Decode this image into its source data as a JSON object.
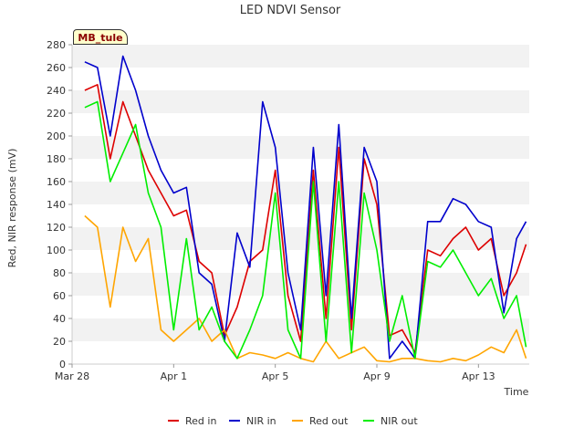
{
  "badge": "MB_tule",
  "chart_data": {
    "type": "line",
    "title": "LED NDVI Sensor",
    "xlabel": "Time",
    "ylabel": "Red, NIR response (mV)",
    "ylim": [
      0,
      280
    ],
    "yticks": [
      0,
      20,
      40,
      60,
      80,
      100,
      120,
      140,
      160,
      180,
      200,
      220,
      240,
      260,
      280
    ],
    "xlim": [
      "Mar 28",
      "Apr 15"
    ],
    "xticks": [
      "Mar 28",
      "Apr 1",
      "Apr 5",
      "Apr 9",
      "Apr 13"
    ],
    "x": [
      "Mar 28 12:00",
      "Mar 29 00:00",
      "Mar 29 12:00",
      "Mar 30 00:00",
      "Mar 30 12:00",
      "Mar 31 00:00",
      "Mar 31 12:00",
      "Apr 1 00:00",
      "Apr 1 12:00",
      "Apr 2 00:00",
      "Apr 2 12:00",
      "Apr 3 00:00",
      "Apr 3 12:00",
      "Apr 4 00:00",
      "Apr 4 12:00",
      "Apr 5 00:00",
      "Apr 5 12:00",
      "Apr 6 00:00",
      "Apr 6 12:00",
      "Apr 7 00:00",
      "Apr 7 12:00",
      "Apr 8 00:00",
      "Apr 8 12:00",
      "Apr 9 00:00",
      "Apr 9 12:00",
      "Apr 10 00:00",
      "Apr 10 12:00",
      "Apr 11 00:00",
      "Apr 11 12:00",
      "Apr 12 00:00",
      "Apr 12 12:00",
      "Apr 13 00:00",
      "Apr 13 12:00",
      "Apr 14 00:00",
      "Apr 14 12:00",
      "Apr 14 21:00"
    ],
    "series": [
      {
        "name": "Red in",
        "color": "#dd0000",
        "values": [
          240,
          245,
          180,
          230,
          200,
          170,
          150,
          130,
          135,
          90,
          80,
          25,
          50,
          90,
          100,
          170,
          60,
          20,
          170,
          40,
          190,
          30,
          180,
          140,
          25,
          30,
          10,
          100,
          95,
          110,
          120,
          100,
          110,
          60,
          80,
          105
        ]
      },
      {
        "name": "NIR in",
        "color": "#0000cc",
        "values": [
          265,
          260,
          200,
          270,
          240,
          200,
          170,
          150,
          155,
          80,
          70,
          20,
          115,
          85,
          230,
          190,
          80,
          30,
          190,
          60,
          210,
          40,
          190,
          160,
          5,
          20,
          5,
          125,
          125,
          145,
          140,
          125,
          120,
          45,
          110,
          125
        ]
      },
      {
        "name": "Red out",
        "color": "#ffa500",
        "values": [
          130,
          120,
          50,
          120,
          90,
          110,
          30,
          20,
          30,
          40,
          20,
          30,
          5,
          10,
          8,
          5,
          10,
          5,
          2,
          20,
          5,
          10,
          15,
          3,
          2,
          5,
          5,
          3,
          2,
          5,
          3,
          8,
          15,
          10,
          30,
          5
        ]
      },
      {
        "name": "NIR out",
        "color": "#00ee00",
        "values": [
          225,
          230,
          160,
          185,
          210,
          150,
          120,
          30,
          110,
          30,
          50,
          20,
          5,
          30,
          60,
          150,
          30,
          5,
          160,
          20,
          160,
          10,
          150,
          100,
          20,
          60,
          5,
          90,
          85,
          100,
          80,
          60,
          75,
          40,
          60,
          15
        ]
      }
    ],
    "legend_placement": "bottom",
    "grid": "horizontal bands"
  }
}
